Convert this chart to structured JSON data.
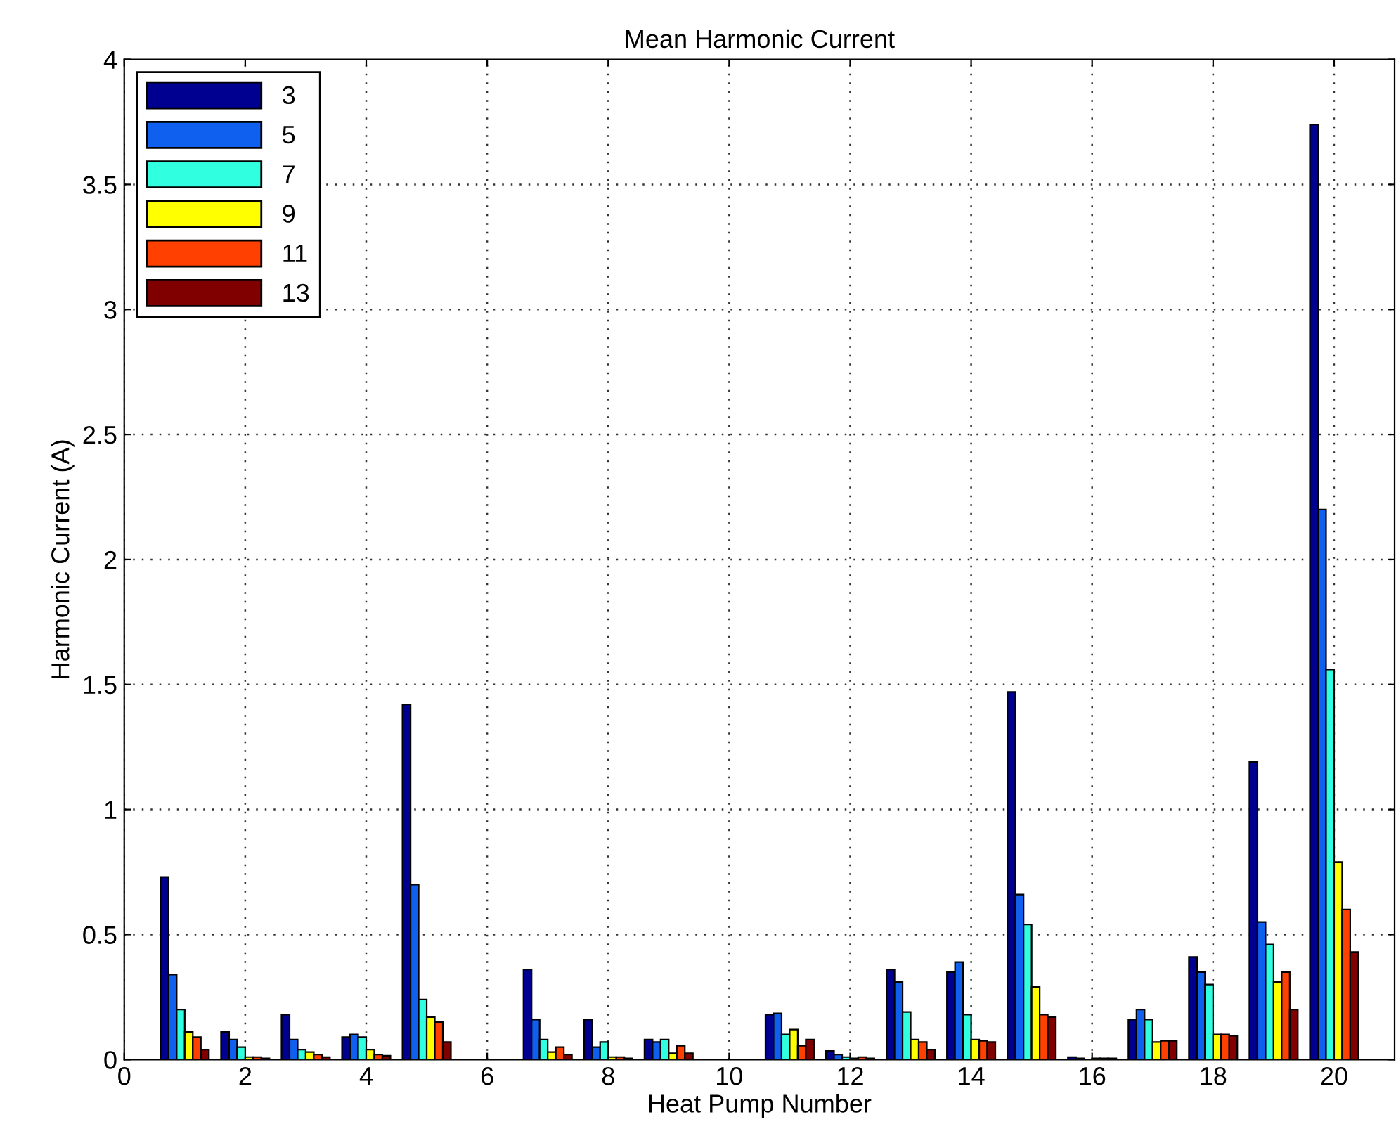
{
  "chart_data": {
    "type": "bar",
    "title": "Mean Harmonic Current",
    "xlabel": "Heat Pump Number",
    "ylabel": "Harmonic Current (A)",
    "x": [
      1,
      2,
      3,
      4,
      5,
      6,
      7,
      8,
      9,
      10,
      11,
      12,
      13,
      14,
      15,
      16,
      17,
      18,
      19,
      20
    ],
    "series": [
      {
        "name": "3",
        "color": "#000090",
        "values": [
          0.73,
          0.11,
          0.18,
          0.09,
          1.42,
          0,
          0.36,
          0.16,
          0.08,
          0,
          0.18,
          0.035,
          0.36,
          0.35,
          1.47,
          0.01,
          0.16,
          0.41,
          1.19,
          3.74
        ]
      },
      {
        "name": "5",
        "color": "#1060f0",
        "values": [
          0.34,
          0.08,
          0.08,
          0.1,
          0.7,
          0,
          0.16,
          0.05,
          0.07,
          0,
          0.185,
          0.02,
          0.31,
          0.39,
          0.66,
          0.005,
          0.2,
          0.35,
          0.55,
          2.2
        ]
      },
      {
        "name": "7",
        "color": "#30ffe0",
        "values": [
          0.2,
          0.05,
          0.04,
          0.09,
          0.24,
          0,
          0.08,
          0.07,
          0.08,
          0,
          0.1,
          0.01,
          0.19,
          0.18,
          0.54,
          null,
          0.16,
          0.3,
          0.46,
          1.56
        ]
      },
      {
        "name": "9",
        "color": "#ffff00",
        "values": [
          0.11,
          0.01,
          0.03,
          0.04,
          0.17,
          0,
          0.03,
          0.01,
          0.025,
          0,
          0.12,
          0.005,
          0.08,
          0.08,
          0.29,
          0.005,
          0.07,
          0.1,
          0.31,
          0.79
        ]
      },
      {
        "name": "11",
        "color": "#ff4000",
        "values": [
          0.09,
          0.01,
          0.02,
          0.02,
          0.15,
          0,
          0.05,
          0.01,
          0.055,
          0,
          0.055,
          0.01,
          0.07,
          0.075,
          0.18,
          0.005,
          0.075,
          0.1,
          0.35,
          0.6
        ]
      },
      {
        "name": "13",
        "color": "#800000",
        "values": [
          0.04,
          0.005,
          0.01,
          0.015,
          0.07,
          0,
          0.02,
          0.005,
          0.025,
          0,
          0.08,
          0.005,
          0.04,
          0.07,
          0.17,
          0.005,
          0.075,
          0.095,
          0.2,
          0.43
        ]
      }
    ],
    "xlim": [
      0,
      21
    ],
    "xticks": [
      0,
      2,
      4,
      6,
      8,
      10,
      12,
      14,
      16,
      18,
      20
    ],
    "ylim": [
      0,
      4
    ],
    "yticks": [
      0,
      0.5,
      1,
      1.5,
      2,
      2.5,
      3,
      3.5,
      4
    ],
    "grid": true,
    "legend": "top left"
  }
}
